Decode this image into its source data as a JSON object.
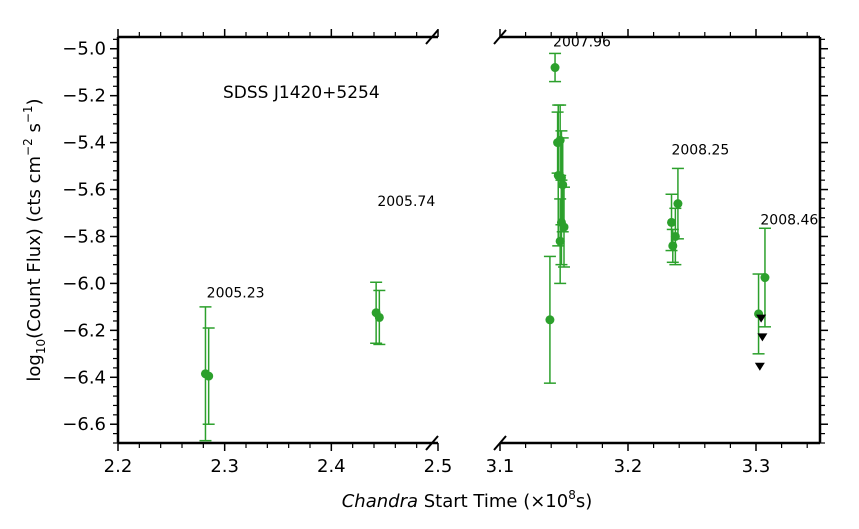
{
  "chart_data": {
    "type": "scatter",
    "broken_x_axis": true,
    "title_annotation": "SDSS J1420+5254",
    "ylabel_prefix": "log",
    "ylabel_sub": "10",
    "ylabel_mid": "(Count Flux) (cts cm",
    "ylabel_exp1": "−2",
    "ylabel_s": " s",
    "ylabel_exp2": "−1",
    "ylabel_end": ")",
    "xlabel_italic": "Chandra",
    "xlabel_rest": " Start Time (×10",
    "xlabel_exp": "8",
    "xlabel_end": "s)",
    "ylim": [
      -6.68,
      -4.95
    ],
    "y_ticks": [
      -5.0,
      -5.2,
      -5.4,
      -5.6,
      -5.8,
      -6.0,
      -6.2,
      -6.4,
      -6.6
    ],
    "y_tick_labels": [
      "−5.0",
      "−5.2",
      "−5.4",
      "−5.6",
      "−5.8",
      "−6.0",
      "−6.2",
      "−6.4",
      "−6.6"
    ],
    "panels": [
      {
        "xlim": [
          2.2,
          2.5
        ],
        "x_ticks": [
          2.2,
          2.3,
          2.4,
          2.5
        ],
        "x_tick_labels": [
          "2.2",
          "2.3",
          "2.4",
          "2.5"
        ],
        "points": [
          {
            "x": 2.282,
            "y": -6.385,
            "err": 0.285
          },
          {
            "x": 2.285,
            "y": -6.395,
            "err": 0.205
          },
          {
            "x": 2.442,
            "y": -6.125,
            "err": 0.13
          },
          {
            "x": 2.445,
            "y": -6.145,
            "err": 0.115
          }
        ],
        "epochs": [
          {
            "label": "2005.23",
            "x": 2.285,
            "y": -6.06
          },
          {
            "label": "2005.74",
            "x": 2.445,
            "y": -5.67
          }
        ]
      },
      {
        "xlim": [
          3.1,
          3.35
        ],
        "x_ticks": [
          3.1,
          3.2,
          3.3
        ],
        "x_tick_labels": [
          "3.1",
          "3.2",
          "3.3"
        ],
        "points": [
          {
            "x": 3.139,
            "y": -6.155,
            "err": 0.27
          },
          {
            "x": 3.143,
            "y": -5.08,
            "err": 0.06
          },
          {
            "x": 3.145,
            "y": -5.4,
            "err": 0.13
          },
          {
            "x": 3.1455,
            "y": -5.54,
            "err": 0.3
          },
          {
            "x": 3.147,
            "y": -5.39,
            "err": 0.15
          },
          {
            "x": 3.147,
            "y": -5.82,
            "err": 0.18
          },
          {
            "x": 3.148,
            "y": -5.55,
            "err": 0.2
          },
          {
            "x": 3.148,
            "y": -5.74,
            "err": 0.18
          },
          {
            "x": 3.149,
            "y": -5.58,
            "err": 0.2
          },
          {
            "x": 3.15,
            "y": -5.76,
            "err": 0.17
          },
          {
            "x": 3.234,
            "y": -5.74,
            "err": 0.12
          },
          {
            "x": 3.235,
            "y": -5.84,
            "err": 0.07
          },
          {
            "x": 3.237,
            "y": -5.8,
            "err": 0.12
          },
          {
            "x": 3.239,
            "y": -5.66,
            "err": 0.15
          },
          {
            "x": 3.302,
            "y": -6.13,
            "err": 0.17
          },
          {
            "x": 3.307,
            "y": -5.975,
            "err": 0.21
          }
        ],
        "upper_limits": [
          {
            "x": 3.304,
            "y": -6.15
          },
          {
            "x": 3.305,
            "y": -6.23
          },
          {
            "x": 3.303,
            "y": -6.355
          }
        ],
        "epochs": [
          {
            "label": "2007.96",
            "x": 3.143,
            "y": -4.99
          },
          {
            "label": "2008.25",
            "x": 3.2355,
            "y": -5.45
          },
          {
            "label": "2008.46",
            "x": 3.305,
            "y": -5.75
          }
        ]
      }
    ],
    "colors": {
      "points": "#2ca02c",
      "upper_limits": "#000000",
      "axes": "#000000"
    }
  }
}
